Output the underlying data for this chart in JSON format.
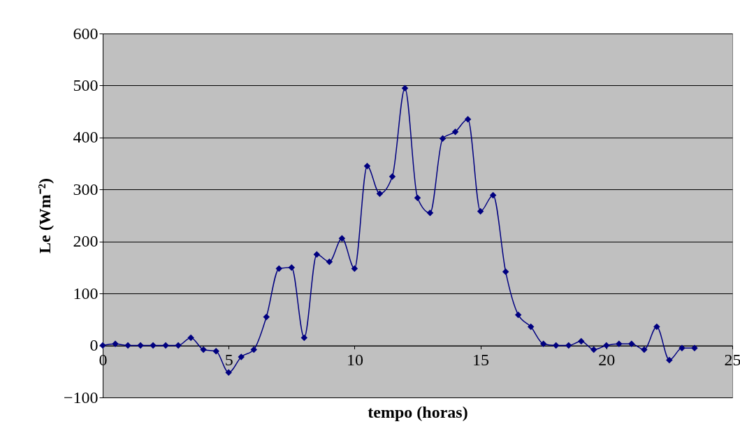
{
  "chart_data": {
    "type": "line",
    "xlabel": "tempo (horas)",
    "ylabel": "Le (Wm⁻²)",
    "x": [
      0,
      0.5,
      1,
      1.5,
      2,
      2.5,
      3,
      3.5,
      4,
      4.5,
      5,
      5.5,
      6,
      6.5,
      7,
      7.5,
      8,
      8.5,
      9,
      9.5,
      10,
      10.5,
      11,
      11.5,
      12,
      12.5,
      13,
      13.5,
      14,
      14.5,
      15,
      15.5,
      16,
      16.5,
      17,
      17.5,
      18,
      18.5,
      19,
      19.5,
      20,
      20.5,
      21,
      21.5,
      22,
      22.5,
      23,
      23.5
    ],
    "series": [
      {
        "color": "#000080",
        "values": [
          0,
          3,
          0,
          0,
          0,
          0,
          0,
          15,
          -8,
          -11,
          -52,
          -22,
          -8,
          55,
          148,
          150,
          15,
          175,
          161,
          206,
          148,
          345,
          292,
          325,
          495,
          284,
          255,
          398,
          411,
          435,
          258,
          289,
          142,
          59,
          36,
          3,
          0,
          0,
          8,
          -8,
          0,
          3,
          3,
          -8,
          36,
          -28,
          -5,
          -5
        ]
      }
    ],
    "xlim": [
      0,
      25
    ],
    "xticks": [
      0,
      5,
      10,
      15,
      20,
      25
    ],
    "ylim": [
      -100,
      600
    ],
    "yticks": [
      -100,
      0,
      100,
      200,
      300,
      400,
      500,
      600
    ],
    "grid": "y",
    "marker": "diamond",
    "line_style": "solid"
  }
}
